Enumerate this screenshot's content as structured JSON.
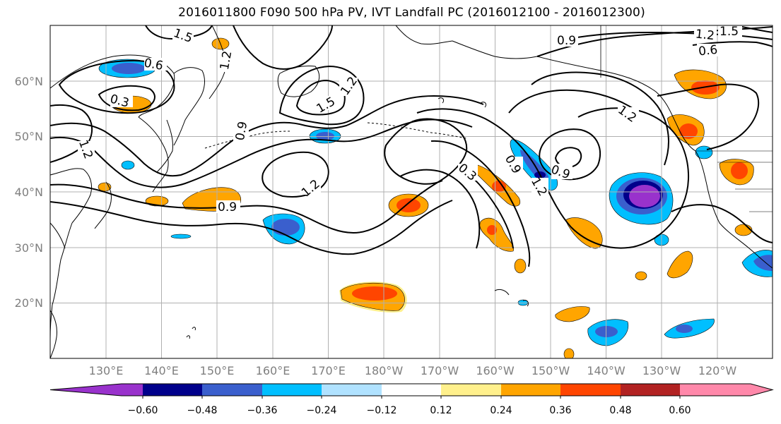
{
  "title": "2016011800 F090 500 hPa PV, IVT Landfall PC (2016012100 - 2016012300)",
  "lat_labels": [
    "60°N",
    "50°N",
    "40°N",
    "30°N",
    "20°N"
  ],
  "lon_labels": [
    "130°E",
    "140°E",
    "150°E",
    "160°E",
    "170°E",
    "180°W",
    "170°W",
    "160°W",
    "150°W",
    "140°W",
    "130°W",
    "120°W"
  ],
  "contour_labels": [
    "1.5",
    "1.2",
    "0.6",
    "0.3",
    "1.5",
    "1.2",
    "0.9",
    "1.2",
    "0.9",
    "1.2",
    "0.3",
    "0.9",
    "0.9",
    "1.2",
    "1.2",
    "1.5",
    "0.6",
    "0.9",
    "1.2"
  ],
  "colorbar": {
    "ticks": [
      "−0.60",
      "−0.48",
      "−0.36",
      "−0.24",
      "−0.12",
      "0.12",
      "0.24",
      "0.36",
      "0.48",
      "0.60"
    ],
    "colors": [
      "#9932cc",
      "#00008b",
      "#3a5fcd",
      "#00bfff",
      "#b0e2ff",
      "#ffffff",
      "#fff08c",
      "#ffa500",
      "#ff4500",
      "#b22222",
      "#ff88aa"
    ]
  }
}
